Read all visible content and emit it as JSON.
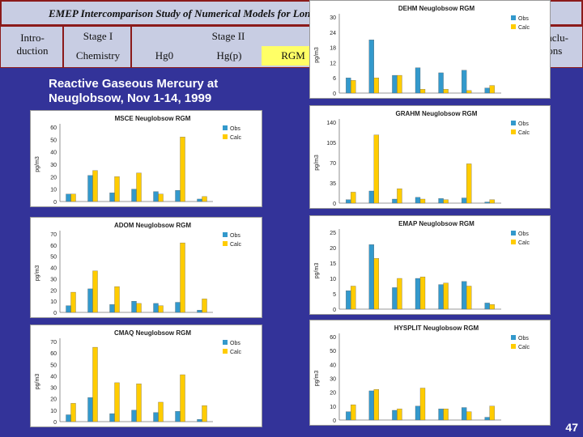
{
  "header": {
    "title": "EMEP Intercomparison Study of Numerical Models for Long-Range Atmospheric Transport of Mercury",
    "intro": "Intro-\nduction",
    "stage1": "Stage I",
    "stage2": "Stage II",
    "chemistry": "Chemistry",
    "hg0": "Hg0",
    "hgp": "Hg(p)",
    "rgm": "RGM",
    "conclu": "Conclu-\nsions"
  },
  "slide_title": {
    "line1": "Reactive Gaseous Mercury at",
    "line2": "Neuglobsow, Nov 1-14, 1999"
  },
  "page_number": "47",
  "colors": {
    "obs": "#3399cc",
    "calc": "#ffcc00",
    "bg": "#333399",
    "highlight": "#ffff66"
  },
  "chart_data": [
    {
      "type": "bar",
      "title": "MSCE Neuglobsow RGM",
      "ylabel": "pg/m3",
      "ylim": [
        0,
        60
      ],
      "yticks": [
        0,
        10,
        20,
        30,
        40,
        50,
        60
      ],
      "series": [
        {
          "name": "Obs",
          "values": [
            6,
            21,
            7,
            10,
            8,
            9,
            2
          ]
        },
        {
          "name": "Calc",
          "values": [
            6,
            25,
            20,
            23,
            6,
            52,
            4
          ]
        }
      ]
    },
    {
      "type": "bar",
      "title": "ADOM Neuglobsow RGM",
      "ylabel": "pg/m3",
      "ylim": [
        0,
        70
      ],
      "yticks": [
        0,
        10,
        20,
        30,
        40,
        50,
        60,
        70
      ],
      "series": [
        {
          "name": "Obs",
          "values": [
            6,
            21,
            7,
            10,
            8,
            9,
            2
          ]
        },
        {
          "name": "Calc",
          "values": [
            18,
            37,
            23,
            8,
            6,
            62,
            12
          ]
        }
      ]
    },
    {
      "type": "bar",
      "title": "CMAQ Neuglobsow RGM",
      "ylabel": "pg/m3",
      "ylim": [
        0,
        70
      ],
      "yticks": [
        0,
        10,
        20,
        30,
        40,
        50,
        60,
        70
      ],
      "series": [
        {
          "name": "Obs",
          "values": [
            6,
            21,
            7,
            10,
            8,
            9,
            2
          ]
        },
        {
          "name": "Calc",
          "values": [
            16,
            65,
            34,
            33,
            17,
            41,
            14
          ]
        }
      ]
    },
    {
      "type": "bar",
      "title": "DEHM Neuglobsow RGM",
      "ylabel": "pg/m3",
      "ylim": [
        0,
        30
      ],
      "yticks": [
        0,
        6,
        12,
        18,
        24,
        30
      ],
      "series": [
        {
          "name": "Obs",
          "values": [
            6,
            21,
            7,
            10,
            8,
            9,
            2
          ]
        },
        {
          "name": "Calc",
          "values": [
            5,
            6,
            7,
            1.5,
            1.5,
            1,
            3
          ]
        }
      ]
    },
    {
      "type": "bar",
      "title": "GRAHM Neuglobsow RGM",
      "ylabel": "pg/m3",
      "ylim": [
        0,
        140
      ],
      "yticks": [
        0,
        35,
        70,
        105,
        140
      ],
      "series": [
        {
          "name": "Obs",
          "values": [
            6,
            21,
            7,
            10,
            8,
            9,
            2
          ]
        },
        {
          "name": "Calc",
          "values": [
            19,
            118,
            25,
            7,
            6,
            68,
            6
          ]
        }
      ]
    },
    {
      "type": "bar",
      "title": "EMAP Neuglobsow RGM",
      "ylabel": "pg/m3",
      "ylim": [
        0,
        25
      ],
      "yticks": [
        0,
        5,
        10,
        15,
        20,
        25
      ],
      "series": [
        {
          "name": "Obs",
          "values": [
            6,
            21,
            7,
            10,
            8,
            9,
            2
          ]
        },
        {
          "name": "Calc",
          "values": [
            7.5,
            16.5,
            10,
            10.5,
            8.5,
            7.5,
            1.5
          ]
        }
      ]
    },
    {
      "type": "bar",
      "title": "HYSPLIT Neuglobsow RGM",
      "ylabel": "pg/m3",
      "ylim": [
        0,
        60
      ],
      "yticks": [
        0,
        10,
        20,
        30,
        40,
        50,
        60
      ],
      "series": [
        {
          "name": "Obs",
          "values": [
            6,
            21,
            7,
            10,
            8,
            9,
            2
          ]
        },
        {
          "name": "Calc",
          "values": [
            11,
            22,
            8,
            23,
            8,
            6,
            10
          ]
        }
      ]
    }
  ]
}
